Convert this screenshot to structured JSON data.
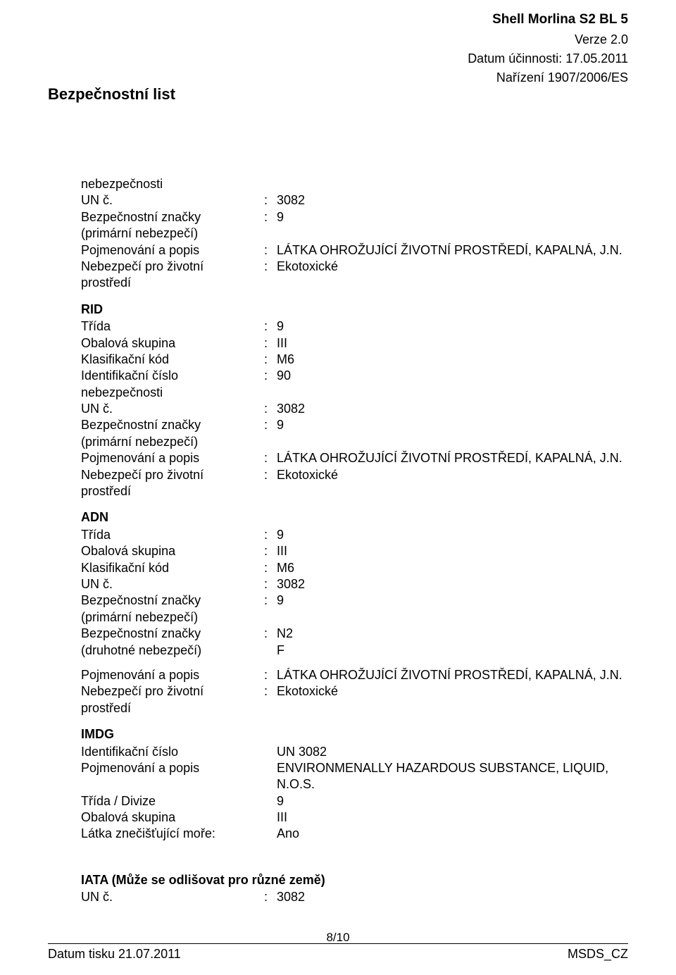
{
  "header": {
    "product": "Shell Morlina S2 BL 5",
    "version": "Verze 2.0",
    "date": "Datum účinnosti: 17.05.2011",
    "regulation": "Nařízení 1907/2006/ES",
    "title": "Bezpečnostní list"
  },
  "top_block": {
    "rows": [
      {
        "label": "nebezpečnosti",
        "value": "",
        "colon": false
      },
      {
        "label": "UN č.",
        "value": "3082",
        "colon": true
      },
      {
        "label": "Bezpečnostní značky",
        "value": "9",
        "colon": true
      },
      {
        "label": "(primární nebezpečí)",
        "value": "",
        "colon": false
      },
      {
        "label": "Pojmenování a popis",
        "value": "LÁTKA OHROŽUJÍCÍ ŽIVOTNÍ PROSTŘEDÍ, KAPALNÁ, J.N.",
        "colon": true
      },
      {
        "label": "Nebezpečí pro životní",
        "value": "Ekotoxické",
        "colon": true
      },
      {
        "label": "prostředí",
        "value": "",
        "colon": false
      }
    ]
  },
  "rid": {
    "title": "RID",
    "rows": [
      {
        "label": "Třída",
        "value": "9",
        "colon": true
      },
      {
        "label": "Obalová skupina",
        "value": "III",
        "colon": true
      },
      {
        "label": "Klasifikační kód",
        "value": "M6",
        "colon": true
      },
      {
        "label": "Identifikační číslo",
        "value": "90",
        "colon": true
      },
      {
        "label": "nebezpečnosti",
        "value": "",
        "colon": false
      },
      {
        "label": "UN č.",
        "value": "3082",
        "colon": true
      },
      {
        "label": "Bezpečnostní značky",
        "value": "9",
        "colon": true
      },
      {
        "label": "(primární nebezpečí)",
        "value": "",
        "colon": false
      },
      {
        "label": "Pojmenování a popis",
        "value": "LÁTKA OHROŽUJÍCÍ ŽIVOTNÍ PROSTŘEDÍ, KAPALNÁ, J.N.",
        "colon": true
      },
      {
        "label": "Nebezpečí pro životní",
        "value": "Ekotoxické",
        "colon": true
      },
      {
        "label": "prostředí",
        "value": "",
        "colon": false
      }
    ]
  },
  "adn": {
    "title": "ADN",
    "rows": [
      {
        "label": "Třída",
        "value": "9",
        "colon": true
      },
      {
        "label": "Obalová skupina",
        "value": "III",
        "colon": true
      },
      {
        "label": "Klasifikační kód",
        "value": "M6",
        "colon": true
      },
      {
        "label": "UN č.",
        "value": "3082",
        "colon": true
      },
      {
        "label": "Bezpečnostní značky",
        "value": "9",
        "colon": true
      },
      {
        "label": "(primární nebezpečí)",
        "value": "",
        "colon": false
      },
      {
        "label": "Bezpečnostní značky",
        "value": "N2",
        "colon": true
      },
      {
        "label": "(druhotné nebezpečí)",
        "value": "F",
        "colon": false
      }
    ],
    "rows2": [
      {
        "label": "Pojmenování a popis",
        "value": "LÁTKA OHROŽUJÍCÍ ŽIVOTNÍ PROSTŘEDÍ, KAPALNÁ, J.N.",
        "colon": true
      },
      {
        "label": "Nebezpečí pro životní",
        "value": "Ekotoxické",
        "colon": true
      },
      {
        "label": "prostředí",
        "value": "",
        "colon": false
      }
    ]
  },
  "imdg": {
    "title": "IMDG",
    "rows": [
      {
        "label": "Identifikační číslo",
        "value": "UN 3082"
      },
      {
        "label": "Pojmenování a popis",
        "value": "ENVIRONMENALLY HAZARDOUS SUBSTANCE, LIQUID, N.O.S."
      },
      {
        "label": "Třída / Divize",
        "value": "9"
      },
      {
        "label": "Obalová skupina",
        "value": "III"
      },
      {
        "label": "Látka znečišťující moře:",
        "value": "Ano"
      }
    ]
  },
  "iata": {
    "title": "IATA (Může se odlišovat pro různé země)",
    "rows": [
      {
        "label": "UN č.",
        "value": "3082",
        "colon": true
      }
    ]
  },
  "footer": {
    "page": "8/10",
    "left": "Datum tisku 21.07.2011",
    "right": "MSDS_CZ"
  }
}
